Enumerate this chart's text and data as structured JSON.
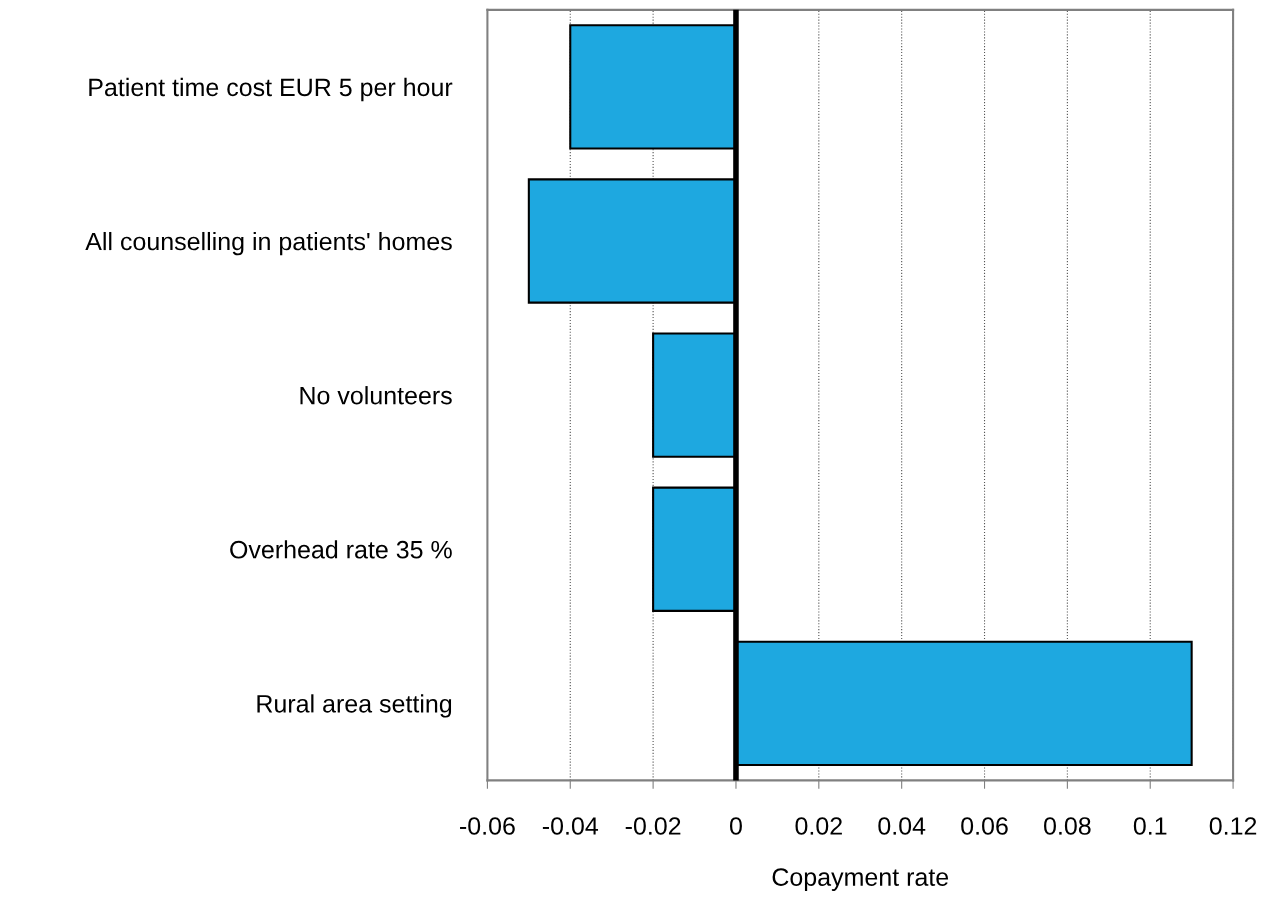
{
  "chart_data": {
    "type": "bar",
    "orientation": "horizontal",
    "xlabel": "Copayment rate",
    "categories": [
      "Patient time cost EUR 5 per hour",
      "All counselling in patients' homes",
      "No volunteers",
      "Overhead rate 35 %",
      "Rural area setting"
    ],
    "values": [
      -0.04,
      -0.05,
      -0.02,
      -0.02,
      0.11
    ],
    "color": "#1ea8e0",
    "xlim": [
      -0.06,
      0.12
    ],
    "xticks": [
      -0.06,
      -0.04,
      -0.02,
      0,
      0.02,
      0.04,
      0.06,
      0.08,
      0.1,
      0.12
    ],
    "grid": "x",
    "legend": false
  }
}
